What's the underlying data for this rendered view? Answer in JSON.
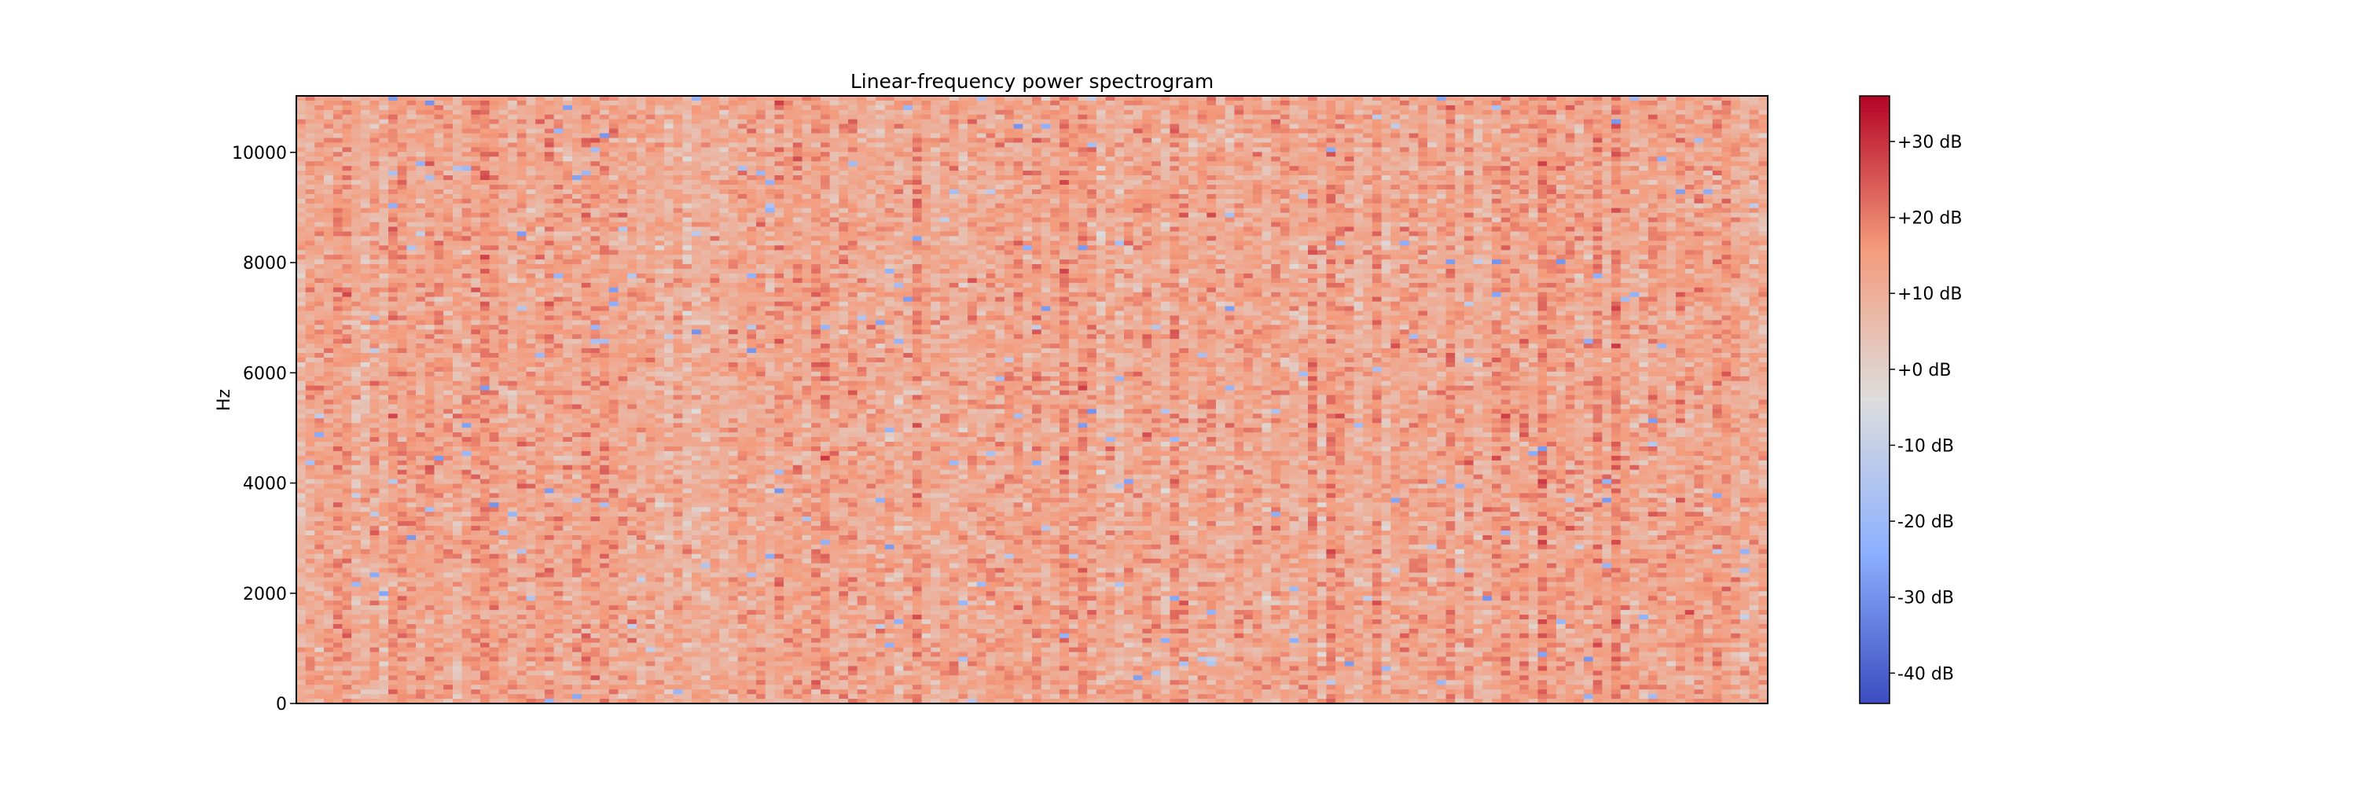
{
  "chart_data": {
    "type": "heatmap",
    "title": "Linear-frequency power spectrogram",
    "xlabel": "",
    "ylabel": "Hz",
    "ylim": [
      0,
      11025
    ],
    "y_ticks": [
      0,
      2000,
      4000,
      6000,
      8000,
      10000
    ],
    "x_ticks": [],
    "colormap": "coolwarm",
    "colorbar": {
      "range_db": [
        -44,
        36
      ],
      "ticks": [
        30,
        20,
        10,
        0,
        -10,
        -20,
        -30,
        -40
      ],
      "tick_labels": [
        "+30 dB",
        "+20 dB",
        "+10 dB",
        "+0 dB",
        "-10 dB",
        "-20 dB",
        "-30 dB",
        "-40 dB"
      ],
      "colors": [
        "#3b4cc0",
        "#aac7fd",
        "#dddddd",
        "#f7a889",
        "#b40426"
      ]
    },
    "typical_level_db": 12
  }
}
